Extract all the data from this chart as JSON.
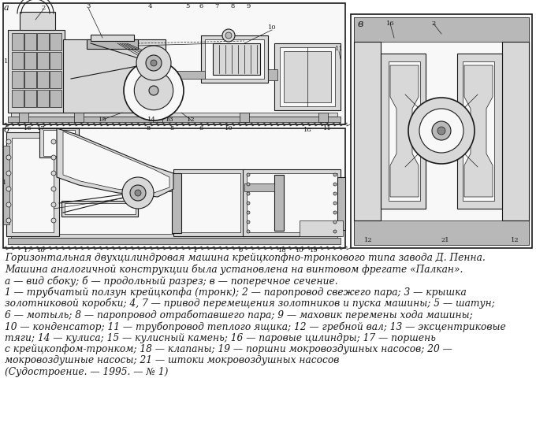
{
  "bg_color": "#ffffff",
  "caption_lines": [
    {
      "text": "Горизонтальная двухцилиндровая машина крейцкопфно-тронкового типа завода Д. Пенна.",
      "style": "italic",
      "size": 8.8
    },
    {
      "text": "Машина аналогичной конструкции была установлена на винтовом фрегате «Палкан».",
      "style": "italic",
      "size": 8.8
    },
    {
      "text": "а — вид сбоку; б — продольный разрез; в — поперечное сечение.",
      "style": "italic",
      "size": 8.8
    },
    {
      "text": "1 — трубчатый ползун крейцкопфа (тронк); 2 — паропровод свежего пара; 3 — крышка",
      "style": "italic",
      "size": 8.8
    },
    {
      "text": "золотниковой коробки; 4, 7 — привод перемещения золотников и пуска машины; 5 — шатун;",
      "style": "italic",
      "size": 8.8
    },
    {
      "text": "6 — мотыль; 8 — паропровод отработавшего пара; 9 — маховик перемены хода машины;",
      "style": "italic",
      "size": 8.8
    },
    {
      "text": "10 — конденсатор; 11 — трубопровод теплого ящика; 12 — гребной вал; 13 — эксцентриковые",
      "style": "italic",
      "size": 8.8
    },
    {
      "text": "тяги; 14 — кулиса; 15 — кулисный камень; 16 — паровые цилиндры; 17 — поршень",
      "style": "italic",
      "size": 8.8
    },
    {
      "text": "с крейцкопфом-тронком; 18 — клапаны; 19 — поршни мокровоздушных насосов; 20 —",
      "style": "italic",
      "size": 8.8
    },
    {
      "text": "мокровоздушные насосы; 21 — штоки мокровоздушных насосов",
      "style": "italic",
      "size": 8.8
    },
    {
      "text": "(Судостроение. — 1995. — № 1)",
      "style": "italic",
      "size": 8.8
    }
  ],
  "lc": "#1a1a1a",
  "lw_thin": 0.5,
  "lw_med": 0.8,
  "lw_thick": 1.2,
  "fill_light": "#d8d8d8",
  "fill_mid": "#b8b8b8",
  "fill_dark": "#888888",
  "fill_white": "#f8f8f8",
  "label_a": "а",
  "label_b": "б",
  "label_v": "в"
}
